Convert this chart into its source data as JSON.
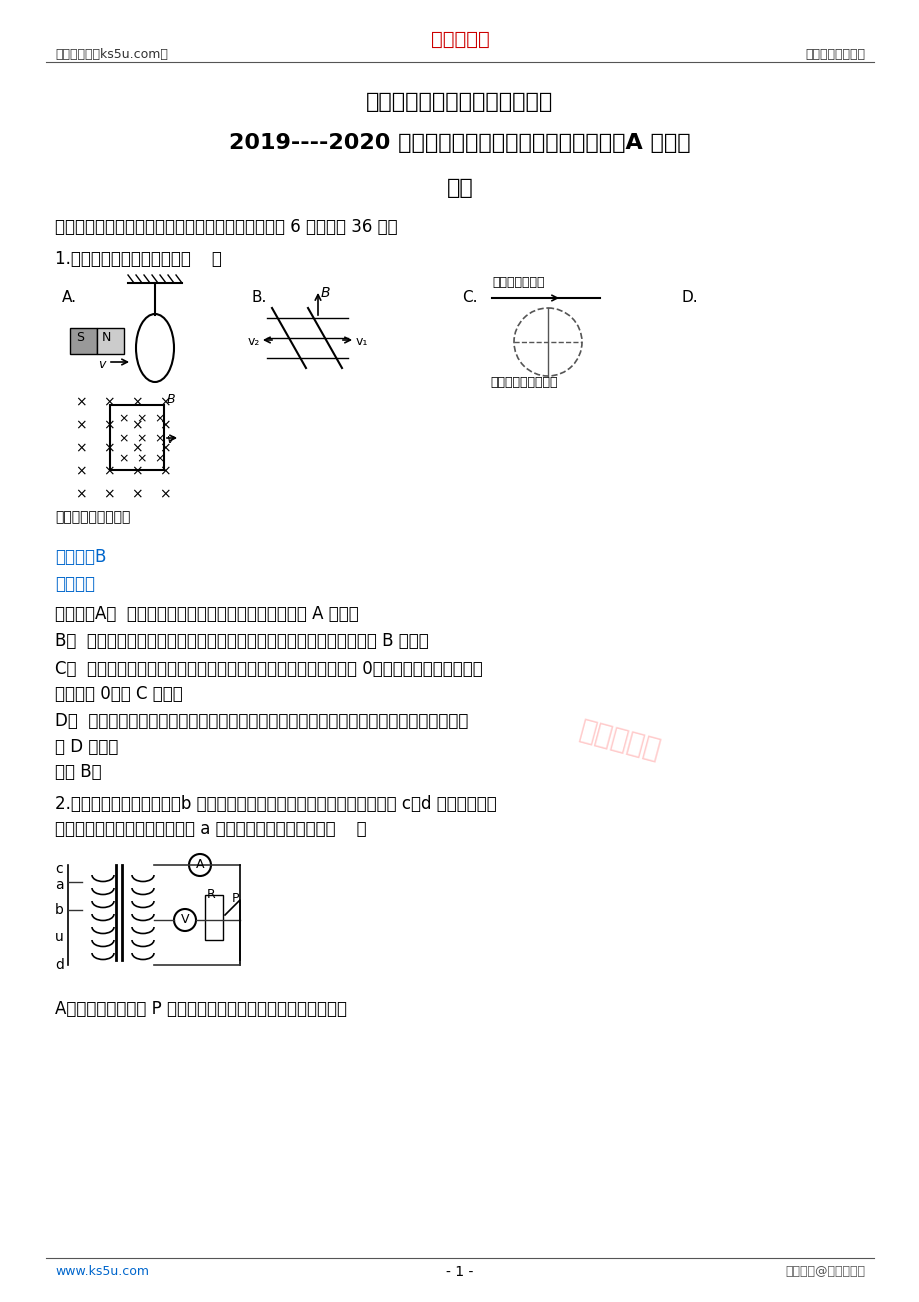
{
  "bg_color": "#ffffff",
  "header_left": "高考资源网（ks5u.com）",
  "header_center": "高考资源网",
  "header_right": "您身边的高考专家",
  "header_center_color": "#cc0000",
  "title1": "北师大珠海分校附属外国语学校",
  "title2": "2019----2020 学年第二学期期中考试高二年级物理（A 班）试",
  "title3": "题卷",
  "section1": "一．单项选择题（每小题只有一个选项正确，每小题 6 分，共计 36 分）",
  "q1_text": "1.图中能产生感应电流的是（    ）",
  "answer_color": "#0066cc",
  "answer_label": "【答案】B",
  "jiexi_label": "【解析】",
  "jiexi_color": "#0066cc",
  "detail_label": "【详解】A．  线圈是不闭合的，不能产生感应电流。故 A 错误；",
  "detail_b": "B．  线框的面积增大，穿过线框的磁通量增大，能够产生感应电流。故 B 正确；",
  "detail_c": "C．  由于直导线在线圈的直径的上方，所以穿过线圈的磁通量等于 0，电流增大，线圈的磁通",
  "detail_c2": "量仍然是 0．故 C 错误；",
  "detail_d": "D．  线圈整体垂直于磁场运动，线圈的磁通量始终是最大，没有发生变化，没有感应电流。",
  "detail_d2": "故 D 错误。",
  "guxuan": "故选 B。",
  "q2_text": "2.如图所示的理想变压器，b 是原线圈的中点接头，从某时刻开始在原线圈 c、d 两端加上正弦",
  "q2_text2": "交变电压，现将单刀双掷开关与 a 连接，下列说法正确的是（    ）",
  "q2_optA": "A．滑动变阻器触头 P 向上移动时，电压表、电流表示数均变小",
  "footer_left": "www.ks5u.com",
  "footer_center": "- 1 -",
  "footer_right": "版权所有@高考资源网",
  "watermark": "高考资源网",
  "watermark_color": "#ffaaaa"
}
